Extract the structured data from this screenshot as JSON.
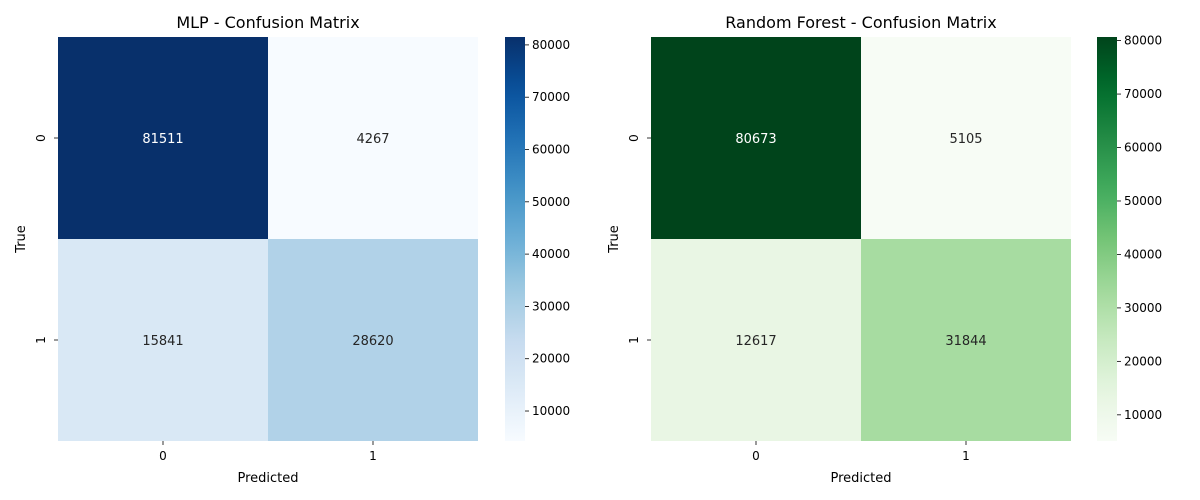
{
  "chart_data": [
    {
      "type": "heatmap",
      "title": "MLP - Confusion Matrix",
      "xlabel": "Predicted",
      "ylabel": "True",
      "x_categories": [
        "0",
        "1"
      ],
      "y_categories": [
        "0",
        "1"
      ],
      "values": [
        [
          81511,
          4267
        ],
        [
          15841,
          28620
        ]
      ],
      "colormap": "Blues",
      "colorbar": {
        "min": 4267,
        "max": 81511,
        "ticks": [
          10000,
          20000,
          30000,
          40000,
          50000,
          60000,
          70000,
          80000
        ]
      }
    },
    {
      "type": "heatmap",
      "title": "Random Forest - Confusion Matrix",
      "xlabel": "Predicted",
      "ylabel": "True",
      "x_categories": [
        "0",
        "1"
      ],
      "y_categories": [
        "0",
        "1"
      ],
      "values": [
        [
          80673,
          5105
        ],
        [
          12617,
          31844
        ]
      ],
      "colormap": "Greens",
      "colorbar": {
        "min": 5105,
        "max": 80673,
        "ticks": [
          10000,
          20000,
          30000,
          40000,
          50000,
          60000,
          70000,
          80000
        ]
      }
    }
  ],
  "colors": {
    "blues": [
      "#f7fbff",
      "#deebf7",
      "#c6dbef",
      "#9ecae1",
      "#6baed6",
      "#4292c6",
      "#2171b5",
      "#08519c",
      "#08306b"
    ],
    "greens": [
      "#f7fcf5",
      "#e5f5e0",
      "#c7e9c0",
      "#a1d99b",
      "#74c476",
      "#41ab5d",
      "#238b45",
      "#006d2c",
      "#00441b"
    ]
  }
}
